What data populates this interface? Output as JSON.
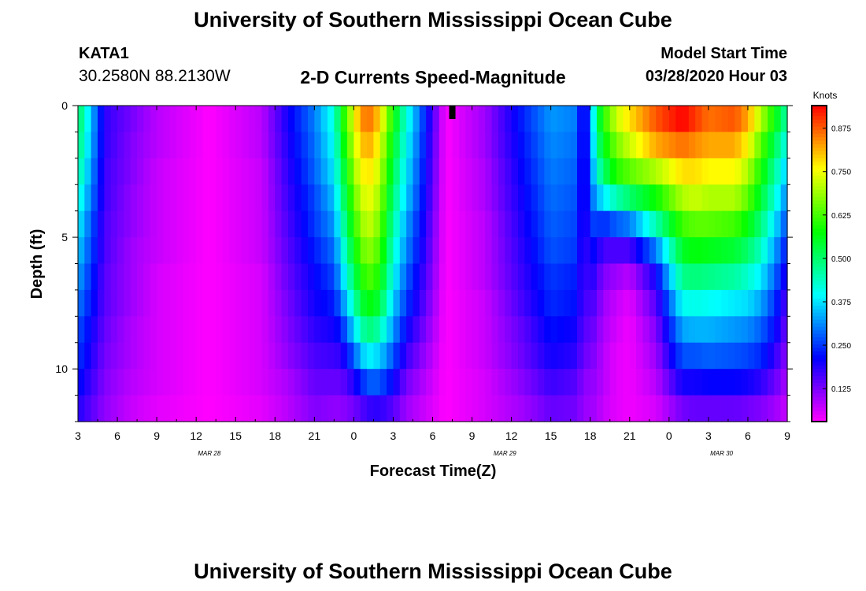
{
  "header": {
    "title_top": "University of Southern Mississippi Ocean Cube",
    "title_bottom": "University of Southern Mississippi Ocean Cube",
    "station_id": "KATA1",
    "station_location": "30.2580N 88.2130W",
    "subtitle": "2-D Currents Speed-Magnitude",
    "model_start_label": "Model Start Time",
    "model_start_value": "03/28/2020 Hour 03"
  },
  "colors": {
    "background": "#ffffff",
    "colormap": [
      "#ff00ff",
      "#0000ff",
      "#00ffff",
      "#00ff00",
      "#ffff00",
      "#ff0000"
    ],
    "marker": "#000000"
  },
  "chart_data": {
    "type": "heatmap",
    "xlabel": "Forecast Time(Z)",
    "ylabel": "Depth (ft)",
    "colorbar_label": "Knots",
    "colorbar_ticks": [
      "0.125",
      "0.250",
      "0.375",
      "0.500",
      "0.625",
      "0.750",
      "0.875"
    ],
    "colorbar_range": [
      0.03,
      0.94
    ],
    "x_range_hours": [
      0,
      54
    ],
    "x_ticks": [
      "3",
      "6",
      "9",
      "12",
      "15",
      "18",
      "21",
      "0",
      "3",
      "6",
      "9",
      "12",
      "15",
      "18",
      "21",
      "0",
      "3",
      "6",
      "9"
    ],
    "date_labels": [
      {
        "text": "MAR 28",
        "hour": 10
      },
      {
        "text": "MAR 29",
        "hour": 32.5
      },
      {
        "text": "MAR 30",
        "hour": 49
      }
    ],
    "y_range_ft": [
      0,
      12
    ],
    "y_ticks": [
      "0",
      "5",
      "10"
    ],
    "y_inverted": true,
    "marker_hour": 28.5,
    "time_step_hours": 0.5,
    "depth_step_ft": 1,
    "depths_ft": [
      0,
      1,
      2,
      3,
      4,
      5,
      6,
      7,
      8,
      9,
      10,
      11
    ],
    "profile_times_hours": [
      0,
      2,
      4,
      6,
      10,
      14,
      16,
      18,
      19.5,
      20,
      20.5,
      21,
      21.5,
      22,
      22.5,
      23,
      24,
      25,
      28,
      31,
      34,
      36,
      38,
      38.5,
      39,
      39.5,
      40,
      41,
      42,
      44,
      46,
      47,
      48,
      50,
      51,
      52,
      53,
      54
    ],
    "speed_profiles_knots": [
      [
        0.52,
        0.5,
        0.47,
        0.43,
        0.39,
        0.36,
        0.33,
        0.3,
        0.27,
        0.25,
        0.22,
        0.19
      ],
      [
        0.18,
        0.18,
        0.17,
        0.17,
        0.16,
        0.16,
        0.15,
        0.15,
        0.14,
        0.13,
        0.12,
        0.11
      ],
      [
        0.13,
        0.12,
        0.12,
        0.11,
        0.11,
        0.1,
        0.1,
        0.1,
        0.09,
        0.09,
        0.08,
        0.07
      ],
      [
        0.08,
        0.08,
        0.07,
        0.07,
        0.07,
        0.07,
        0.06,
        0.06,
        0.06,
        0.06,
        0.06,
        0.05
      ],
      [
        0.03,
        0.03,
        0.03,
        0.03,
        0.03,
        0.03,
        0.03,
        0.03,
        0.03,
        0.03,
        0.03,
        0.03
      ],
      [
        0.08,
        0.08,
        0.07,
        0.07,
        0.07,
        0.07,
        0.06,
        0.06,
        0.06,
        0.06,
        0.06,
        0.05
      ],
      [
        0.2,
        0.19,
        0.18,
        0.17,
        0.16,
        0.15,
        0.14,
        0.13,
        0.12,
        0.11,
        0.09,
        0.08
      ],
      [
        0.3,
        0.29,
        0.28,
        0.26,
        0.25,
        0.23,
        0.21,
        0.2,
        0.18,
        0.16,
        0.14,
        0.12
      ],
      [
        0.42,
        0.4,
        0.38,
        0.35,
        0.32,
        0.29,
        0.26,
        0.23,
        0.2,
        0.17,
        0.14,
        0.11
      ],
      [
        0.55,
        0.52,
        0.49,
        0.46,
        0.42,
        0.38,
        0.34,
        0.29,
        0.23,
        0.18,
        0.14,
        0.11
      ],
      [
        0.65,
        0.62,
        0.58,
        0.55,
        0.51,
        0.47,
        0.42,
        0.36,
        0.29,
        0.22,
        0.16,
        0.12
      ],
      [
        0.74,
        0.71,
        0.68,
        0.64,
        0.6,
        0.56,
        0.51,
        0.45,
        0.37,
        0.28,
        0.19,
        0.13
      ],
      [
        0.83,
        0.79,
        0.75,
        0.71,
        0.67,
        0.63,
        0.58,
        0.52,
        0.44,
        0.34,
        0.23,
        0.15
      ],
      [
        0.86,
        0.82,
        0.78,
        0.75,
        0.72,
        0.68,
        0.63,
        0.57,
        0.49,
        0.39,
        0.27,
        0.17
      ],
      [
        0.84,
        0.8,
        0.76,
        0.73,
        0.7,
        0.66,
        0.62,
        0.56,
        0.48,
        0.38,
        0.28,
        0.18
      ],
      [
        0.78,
        0.74,
        0.71,
        0.68,
        0.65,
        0.62,
        0.58,
        0.53,
        0.45,
        0.36,
        0.27,
        0.18
      ],
      [
        0.58,
        0.55,
        0.52,
        0.49,
        0.46,
        0.43,
        0.4,
        0.36,
        0.32,
        0.27,
        0.21,
        0.15
      ],
      [
        0.42,
        0.4,
        0.38,
        0.36,
        0.33,
        0.31,
        0.28,
        0.25,
        0.21,
        0.17,
        0.13,
        0.1
      ],
      [
        0.03,
        0.03,
        0.03,
        0.03,
        0.03,
        0.03,
        0.03,
        0.03,
        0.03,
        0.03,
        0.03,
        0.03
      ],
      [
        0.1,
        0.1,
        0.09,
        0.09,
        0.08,
        0.08,
        0.08,
        0.07,
        0.07,
        0.07,
        0.06,
        0.06
      ],
      [
        0.24,
        0.23,
        0.22,
        0.21,
        0.2,
        0.19,
        0.18,
        0.17,
        0.15,
        0.14,
        0.12,
        0.1
      ],
      [
        0.32,
        0.31,
        0.3,
        0.29,
        0.28,
        0.27,
        0.25,
        0.24,
        0.22,
        0.2,
        0.17,
        0.14
      ],
      [
        0.3,
        0.29,
        0.28,
        0.27,
        0.26,
        0.25,
        0.23,
        0.22,
        0.2,
        0.18,
        0.15,
        0.13
      ],
      [
        0.15,
        0.15,
        0.15,
        0.15,
        0.15,
        0.15,
        0.15,
        0.15,
        0.14,
        0.13,
        0.11,
        0.1
      ],
      [
        0.3,
        0.29,
        0.28,
        0.27,
        0.25,
        0.22,
        0.2,
        0.17,
        0.15,
        0.13,
        0.11,
        0.1
      ],
      [
        0.5,
        0.47,
        0.42,
        0.34,
        0.26,
        0.2,
        0.16,
        0.14,
        0.12,
        0.11,
        0.1,
        0.09
      ],
      [
        0.6,
        0.56,
        0.5,
        0.38,
        0.24,
        0.16,
        0.12,
        0.1,
        0.09,
        0.08,
        0.08,
        0.07
      ],
      [
        0.72,
        0.66,
        0.6,
        0.45,
        0.28,
        0.16,
        0.1,
        0.07,
        0.06,
        0.05,
        0.05,
        0.05
      ],
      [
        0.78,
        0.72,
        0.64,
        0.5,
        0.3,
        0.16,
        0.08,
        0.05,
        0.04,
        0.04,
        0.04,
        0.04
      ],
      [
        0.88,
        0.82,
        0.7,
        0.58,
        0.45,
        0.3,
        0.2,
        0.15,
        0.12,
        0.1,
        0.08,
        0.06
      ],
      [
        0.94,
        0.86,
        0.78,
        0.7,
        0.62,
        0.55,
        0.48,
        0.4,
        0.33,
        0.27,
        0.2,
        0.13
      ],
      [
        0.9,
        0.84,
        0.78,
        0.72,
        0.64,
        0.57,
        0.49,
        0.41,
        0.34,
        0.27,
        0.2,
        0.14
      ],
      [
        0.86,
        0.82,
        0.76,
        0.7,
        0.64,
        0.56,
        0.48,
        0.4,
        0.34,
        0.28,
        0.21,
        0.14
      ],
      [
        0.88,
        0.82,
        0.76,
        0.7,
        0.62,
        0.54,
        0.46,
        0.38,
        0.32,
        0.27,
        0.21,
        0.14
      ],
      [
        0.82,
        0.76,
        0.7,
        0.64,
        0.57,
        0.5,
        0.43,
        0.37,
        0.31,
        0.26,
        0.2,
        0.13
      ],
      [
        0.7,
        0.64,
        0.59,
        0.54,
        0.49,
        0.44,
        0.38,
        0.33,
        0.28,
        0.24,
        0.18,
        0.12
      ],
      [
        0.58,
        0.52,
        0.47,
        0.43,
        0.38,
        0.33,
        0.29,
        0.25,
        0.22,
        0.18,
        0.14,
        0.1
      ],
      [
        0.45,
        0.4,
        0.35,
        0.3,
        0.26,
        0.22,
        0.18,
        0.15,
        0.13,
        0.11,
        0.09,
        0.07
      ]
    ]
  }
}
